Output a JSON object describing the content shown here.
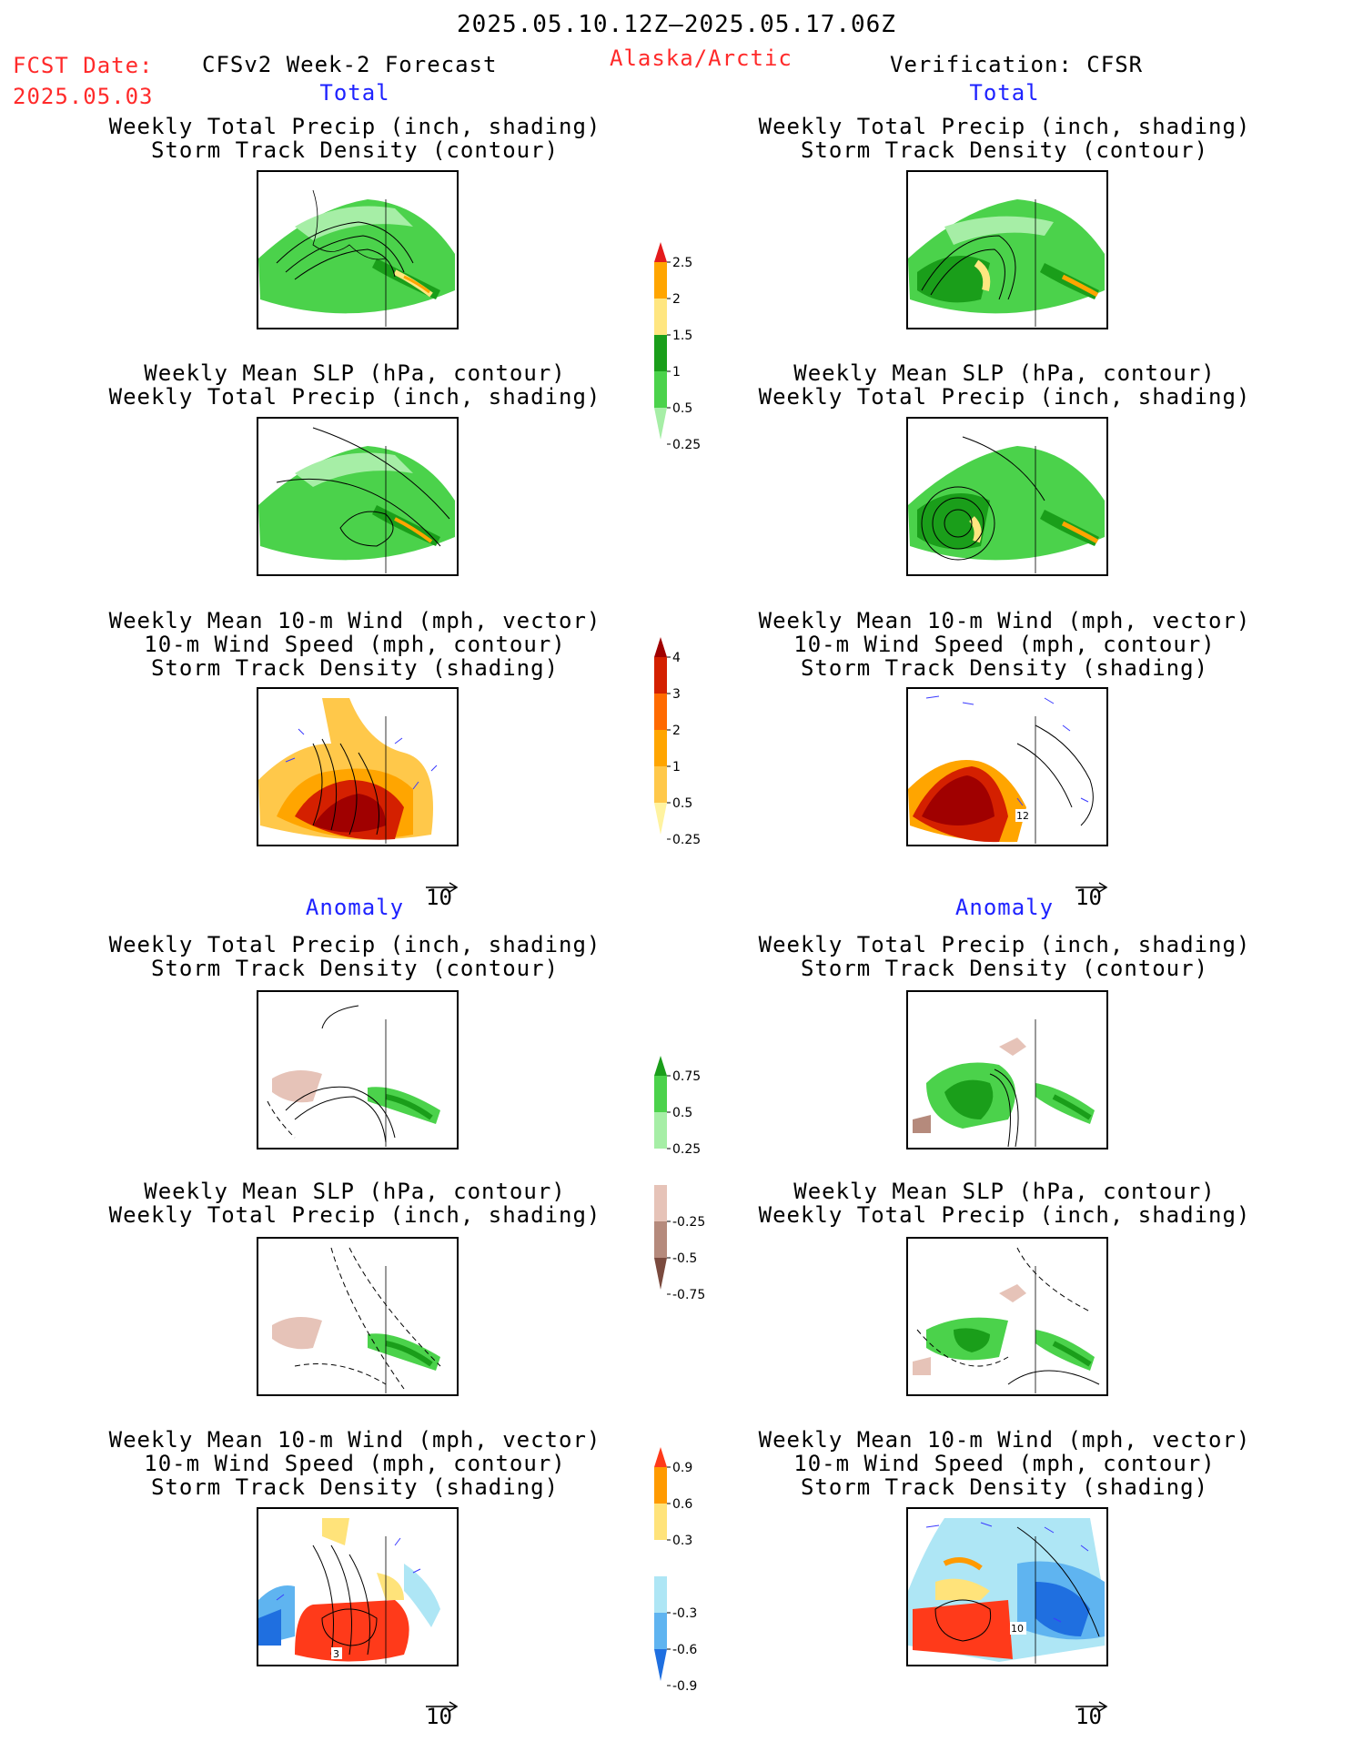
{
  "header": {
    "period": "2025.05.10.12Z–2025.05.17.06Z",
    "fcst_label": "FCST Date:",
    "fcst_date": "2025.05.03",
    "model": "CFSv2 Week-2 Forecast",
    "region": "Alaska/Arctic",
    "verification": "Verification: CFSR"
  },
  "sections": {
    "total": "Total",
    "anomaly": "Anomaly"
  },
  "titles": {
    "precip_storm": [
      "Weekly Total Precip (inch, shading)",
      "Storm Track Density (contour)"
    ],
    "slp_precip": [
      "Weekly Mean SLP (hPa, contour)",
      "Weekly Total Precip (inch, shading)"
    ],
    "wind_storm": [
      "Weekly Mean 10-m Wind (mph, vector)",
      "10-m Wind Speed (mph, contour)",
      "Storm Track Density (shading)"
    ]
  },
  "vector_scale": "10",
  "map_labels": {
    "total_wind_right": "12",
    "anom_wind_left": "3",
    "anom_wind_right": "10"
  },
  "chart_data": [
    {
      "type": "heatmap",
      "name": "colorbar-total-precip",
      "ticks": [
        "2.5",
        "2",
        "1.5",
        "1",
        "0.5",
        "0.25"
      ],
      "colors": [
        "#e41a1c",
        "#ffa500",
        "#ffe680",
        "#1a9e1a",
        "#4bd24b",
        "#a6eea6"
      ]
    },
    {
      "type": "heatmap",
      "name": "colorbar-total-storm",
      "ticks": [
        "4",
        "3",
        "2",
        "1",
        "0.5",
        "0.25"
      ],
      "colors": [
        "#a00000",
        "#d42000",
        "#ff6a00",
        "#ffa500",
        "#ffc84a",
        "#fff3a0"
      ]
    },
    {
      "type": "heatmap",
      "name": "colorbar-anom-precip",
      "ticks": [
        "0.75",
        "0.5",
        "0.25",
        "-0.25",
        "-0.5",
        "-0.75"
      ],
      "colors": [
        "#1a9e1a",
        "#4bd24b",
        "#a6eea6",
        "#ffffff",
        "#e6c3b8",
        "#b58a7c",
        "#7a4a3e"
      ]
    },
    {
      "type": "heatmap",
      "name": "colorbar-anom-storm",
      "ticks": [
        "0.9",
        "0.6",
        "0.3",
        "-0.3",
        "-0.6",
        "-0.9"
      ],
      "colors": [
        "#ff3a1a",
        "#ff9a00",
        "#ffe37a",
        "#ffffff",
        "#aee6f5",
        "#5fb4f0",
        "#1f6fe0"
      ]
    }
  ],
  "colors": {
    "green_light": "#a6eea6",
    "green": "#4bd24b",
    "green_dark": "#1a9e1a",
    "yellow": "#ffe680",
    "orange": "#ffa500",
    "red": "#e41a1c",
    "dark_red": "#a00000",
    "brown_light": "#e6c3b8",
    "blue_light": "#aee6f5",
    "blue": "#5fb4f0",
    "blue_dark": "#1f6fe0"
  }
}
